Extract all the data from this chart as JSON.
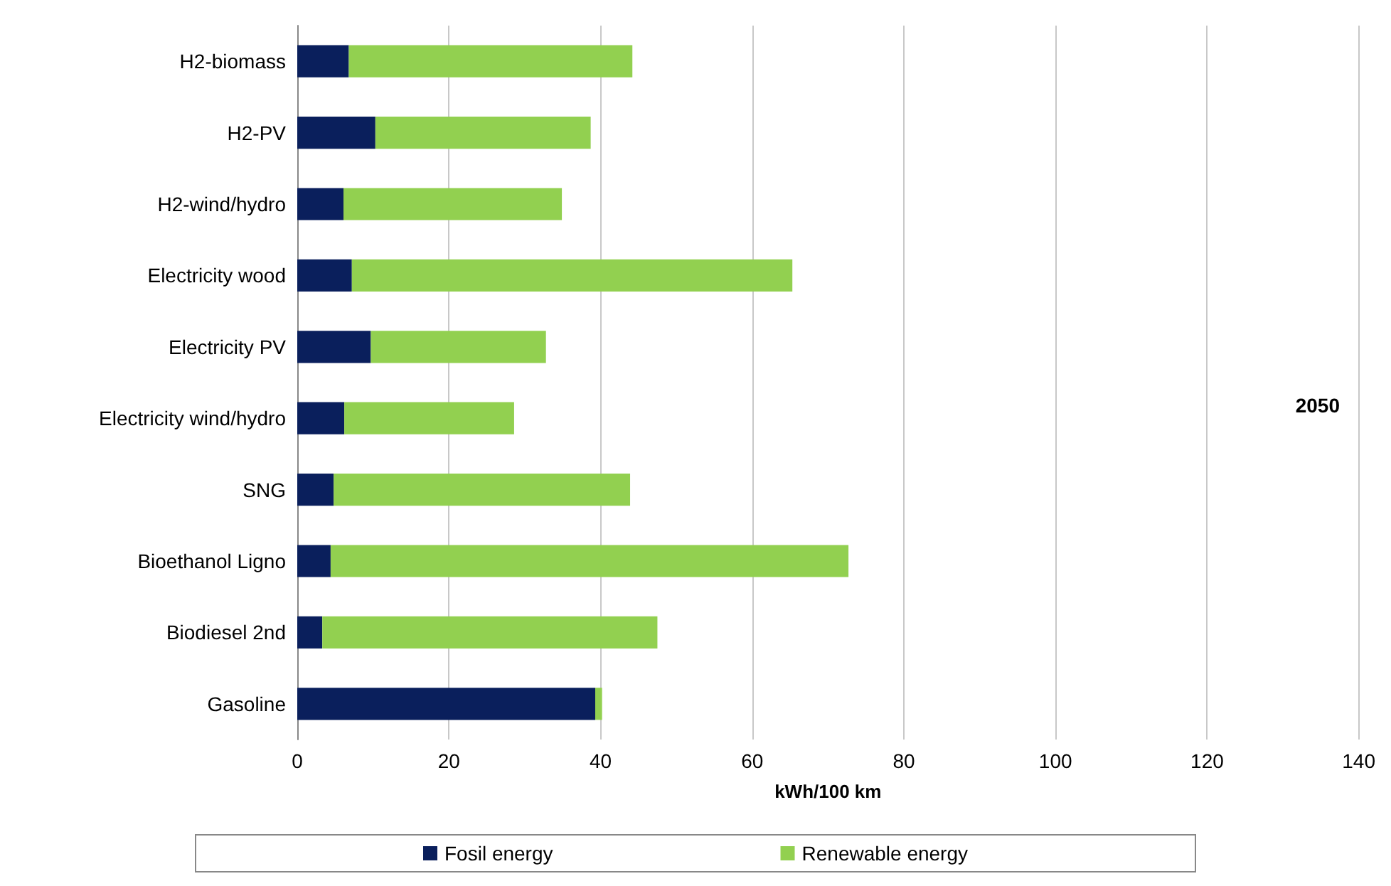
{
  "chart_data": {
    "type": "bar",
    "orientation": "horizontal",
    "stacked": true,
    "categories": [
      "H2-biomass",
      "H2-PV",
      "H2-wind/hydro",
      "Electricity wood",
      "Electricity PV",
      "Electricity wind/hydro",
      "SNG",
      "Bioethanol Ligno",
      "Biodiesel 2nd",
      "Gasoline"
    ],
    "series": [
      {
        "name": "Fosil energy",
        "color": "#0a1f5c",
        "values": [
          6.8,
          10.3,
          6.1,
          7.2,
          9.7,
          6.2,
          4.8,
          4.4,
          3.3,
          39.3
        ]
      },
      {
        "name": "Renewable energy",
        "color": "#92d050",
        "values": [
          37.4,
          28.4,
          28.8,
          58.1,
          23.1,
          22.4,
          39.1,
          68.3,
          44.2,
          0.9
        ]
      }
    ],
    "xlabel": "kWh/100 km",
    "xlim": [
      0,
      140
    ],
    "xticks": [
      0,
      20,
      40,
      60,
      80,
      100,
      120,
      140
    ],
    "grid": "x",
    "legend": "bottom",
    "annotations": [
      "2050"
    ]
  }
}
